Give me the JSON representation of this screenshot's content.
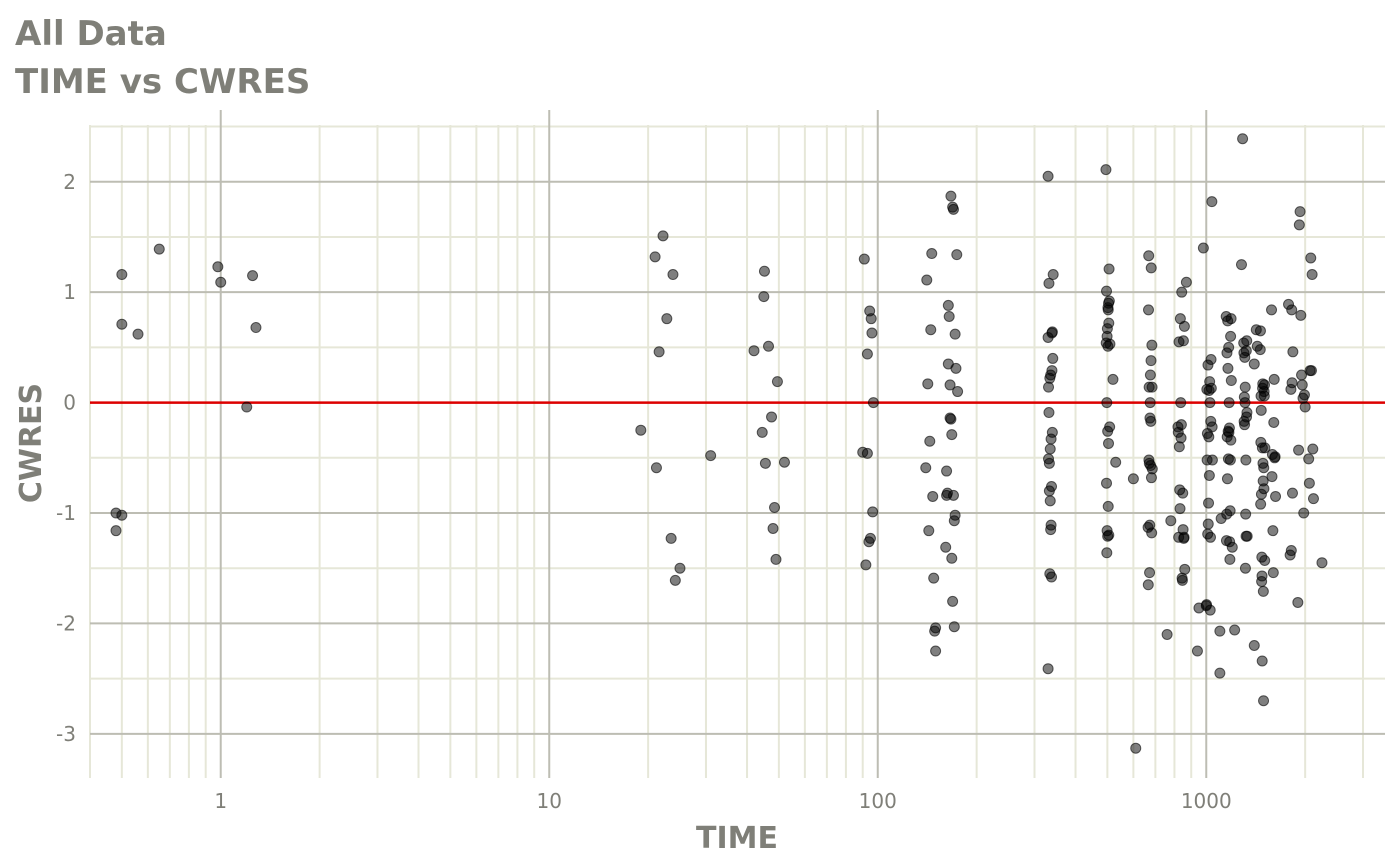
{
  "title_line1": "All Data",
  "title_line2": "TIME vs CWRES",
  "chart_data": {
    "type": "scatter",
    "title": "All Data",
    "subtitle": "TIME vs CWRES",
    "xlabel": "TIME",
    "ylabel": "CWRES",
    "x_scale": "log10",
    "xlim": [
      0.4,
      3500
    ],
    "ylim": [
      -3.4,
      2.65
    ],
    "x_ticks": [
      1,
      10,
      100,
      1000
    ],
    "x_tick_labels": [
      "1",
      "10",
      "100",
      "1000"
    ],
    "y_ticks": [
      -3,
      -2,
      -1,
      0,
      1,
      2
    ],
    "y_tick_labels": [
      "-3",
      "-2",
      "-1",
      "0",
      "1",
      "2"
    ],
    "grid": true,
    "reference_line": {
      "y": 0,
      "color": "#dd0000"
    },
    "colors": {
      "point": "#000000",
      "point_alpha": 0.5,
      "major_grid": "#bdbdb3",
      "minor_grid": "#e6e7d8",
      "text": "#7f7f78"
    },
    "points": [
      [
        0.48,
        -1.0
      ],
      [
        0.48,
        -1.16
      ],
      [
        0.5,
        1.16
      ],
      [
        0.5,
        0.71
      ],
      [
        0.5,
        -1.02
      ],
      [
        0.56,
        0.62
      ],
      [
        0.65,
        1.39
      ],
      [
        0.98,
        1.23
      ],
      [
        1.0,
        1.09
      ],
      [
        1.2,
        -0.04
      ],
      [
        1.25,
        1.15
      ],
      [
        1.28,
        0.68
      ],
      [
        19,
        -0.25
      ],
      [
        21,
        1.32
      ],
      [
        21.2,
        -0.59
      ],
      [
        21.6,
        0.46
      ],
      [
        22.2,
        1.51
      ],
      [
        22.8,
        0.76
      ],
      [
        23.5,
        -1.23
      ],
      [
        23.8,
        1.16
      ],
      [
        24.2,
        -1.61
      ],
      [
        25,
        -1.5
      ],
      [
        31,
        -0.48
      ],
      [
        42,
        0.47
      ],
      [
        44.5,
        -0.27
      ],
      [
        45,
        0.96
      ],
      [
        45.2,
        1.19
      ],
      [
        45.5,
        -0.55
      ],
      [
        46.5,
        0.51
      ],
      [
        47.5,
        -0.13
      ],
      [
        48,
        -1.14
      ],
      [
        48.5,
        -0.95
      ],
      [
        49,
        -1.42
      ],
      [
        49.5,
        0.19
      ],
      [
        52,
        -0.54
      ],
      [
        90,
        -0.45
      ],
      [
        91,
        1.3
      ],
      [
        92,
        -1.47
      ],
      [
        93,
        -0.46
      ],
      [
        93,
        0.44
      ],
      [
        94,
        -1.26
      ],
      [
        94.5,
        0.83
      ],
      [
        95,
        -1.23
      ],
      [
        95.5,
        0.76
      ],
      [
        96,
        0.63
      ],
      [
        96.5,
        -0.99
      ],
      [
        97,
        0.0
      ],
      [
        140,
        -0.59
      ],
      [
        141,
        1.11
      ],
      [
        142,
        0.17
      ],
      [
        143,
        -1.16
      ],
      [
        144,
        -0.35
      ],
      [
        145,
        0.66
      ],
      [
        146,
        1.35
      ],
      [
        147,
        -0.85
      ],
      [
        148,
        -1.59
      ],
      [
        149,
        -2.07
      ],
      [
        150,
        -2.04
      ],
      [
        150,
        -2.25
      ],
      [
        161,
        -1.31
      ],
      [
        162,
        -0.62
      ],
      [
        162,
        -0.84
      ],
      [
        163,
        -0.82
      ],
      [
        164,
        0.88
      ],
      [
        164,
        0.35
      ],
      [
        165,
        0.78
      ],
      [
        166,
        0.16
      ],
      [
        166,
        -0.14
      ],
      [
        167,
        -0.15
      ],
      [
        167,
        1.87
      ],
      [
        168,
        -1.41
      ],
      [
        168,
        -0.29
      ],
      [
        169,
        -1.8
      ],
      [
        169,
        1.77
      ],
      [
        170,
        1.75
      ],
      [
        170,
        -0.84
      ],
      [
        171,
        -2.03
      ],
      [
        171,
        -1.07
      ],
      [
        172,
        -1.02
      ],
      [
        172,
        0.62
      ],
      [
        173,
        0.31
      ],
      [
        174,
        1.34
      ],
      [
        175,
        0.1
      ],
      [
        330,
        2.05
      ],
      [
        330,
        -2.41
      ],
      [
        330,
        0.59
      ],
      [
        331,
        0.14
      ],
      [
        331,
        -0.51
      ],
      [
        332,
        1.08
      ],
      [
        332,
        -0.09
      ],
      [
        333,
        -0.8
      ],
      [
        333,
        -0.55
      ],
      [
        334,
        0.22
      ],
      [
        334,
        -1.55
      ],
      [
        335,
        -0.89
      ],
      [
        335,
        -0.42
      ],
      [
        336,
        0.25
      ],
      [
        336,
        -1.15
      ],
      [
        337,
        -1.11
      ],
      [
        337,
        -0.33
      ],
      [
        338,
        -1.58
      ],
      [
        338,
        -0.76
      ],
      [
        339,
        0.29
      ],
      [
        339,
        0.63
      ],
      [
        340,
        -0.27
      ],
      [
        340,
        0.64
      ],
      [
        341,
        0.4
      ],
      [
        342,
        1.16
      ],
      [
        495,
        2.11
      ],
      [
        496,
        0.54
      ],
      [
        497,
        1.01
      ],
      [
        497,
        -0.73
      ],
      [
        498,
        0.0
      ],
      [
        498,
        -1.36
      ],
      [
        499,
        -1.16
      ],
      [
        499,
        0.6
      ],
      [
        500,
        0.67
      ],
      [
        501,
        -0.26
      ],
      [
        501,
        -1.21
      ],
      [
        502,
        0.51
      ],
      [
        502,
        0.86
      ],
      [
        503,
        -0.94
      ],
      [
        503,
        0.84
      ],
      [
        504,
        -0.37
      ],
      [
        504,
        0.9
      ],
      [
        505,
        -1.2
      ],
      [
        505,
        0.72
      ],
      [
        506,
        1.21
      ],
      [
        507,
        0.92
      ],
      [
        508,
        -0.22
      ],
      [
        509,
        0.53
      ],
      [
        520,
        0.21
      ],
      [
        530,
        -0.54
      ],
      [
        600,
        -0.69
      ],
      [
        610,
        -3.13
      ],
      [
        665,
        -1.13
      ],
      [
        666,
        -1.65
      ],
      [
        667,
        0.84
      ],
      [
        668,
        1.33
      ],
      [
        669,
        -0.52
      ],
      [
        670,
        0.14
      ],
      [
        671,
        -0.55
      ],
      [
        672,
        -1.54
      ],
      [
        673,
        -1.11
      ],
      [
        674,
        -0.14
      ],
      [
        675,
        0.0
      ],
      [
        676,
        0.25
      ],
      [
        677,
        -0.57
      ],
      [
        678,
        -0.17
      ],
      [
        679,
        0.38
      ],
      [
        680,
        1.22
      ],
      [
        681,
        -0.68
      ],
      [
        682,
        -1.18
      ],
      [
        683,
        0.52
      ],
      [
        684,
        0.14
      ],
      [
        685,
        -0.6
      ],
      [
        760,
        -2.1
      ],
      [
        780,
        -1.07
      ],
      [
        820,
        -0.22
      ],
      [
        822,
        -0.27
      ],
      [
        824,
        -1.22
      ],
      [
        826,
        0.55
      ],
      [
        828,
        -0.4
      ],
      [
        830,
        -0.79
      ],
      [
        832,
        -0.96
      ],
      [
        834,
        0.76
      ],
      [
        836,
        0.0
      ],
      [
        838,
        -0.32
      ],
      [
        840,
        -0.2
      ],
      [
        842,
        1.0
      ],
      [
        844,
        -1.59
      ],
      [
        846,
        -1.61
      ],
      [
        848,
        -0.82
      ],
      [
        850,
        -1.15
      ],
      [
        852,
        0.56
      ],
      [
        854,
        -1.23
      ],
      [
        856,
        -1.22
      ],
      [
        858,
        0.69
      ],
      [
        860,
        -1.51
      ],
      [
        870,
        1.09
      ],
      [
        940,
        -2.25
      ],
      [
        950,
        -1.86
      ],
      [
        980,
        1.4
      ],
      [
        1000,
        -1.84
      ],
      [
        1002,
        -1.83
      ],
      [
        1004,
        0.12
      ],
      [
        1006,
        -0.52
      ],
      [
        1008,
        -0.28
      ],
      [
        1010,
        -1.19
      ],
      [
        1012,
        0.34
      ],
      [
        1014,
        -1.1
      ],
      [
        1016,
        -0.91
      ],
      [
        1018,
        -0.31
      ],
      [
        1020,
        0.11
      ],
      [
        1022,
        -0.66
      ],
      [
        1024,
        0.19
      ],
      [
        1026,
        0.0
      ],
      [
        1028,
        -1.88
      ],
      [
        1030,
        -1.22
      ],
      [
        1032,
        -0.17
      ],
      [
        1034,
        0.39
      ],
      [
        1036,
        0.13
      ],
      [
        1040,
        1.82
      ],
      [
        1042,
        -0.22
      ],
      [
        1044,
        -0.52
      ],
      [
        1100,
        -2.45
      ],
      [
        1100,
        -2.07
      ],
      [
        1110,
        -1.05
      ],
      [
        1150,
        0.78
      ],
      [
        1152,
        -1.25
      ],
      [
        1154,
        -1.01
      ],
      [
        1156,
        0.45
      ],
      [
        1158,
        -0.31
      ],
      [
        1160,
        -0.69
      ],
      [
        1162,
        0.74
      ],
      [
        1164,
        0.31
      ],
      [
        1166,
        -0.26
      ],
      [
        1168,
        -0.51
      ],
      [
        1170,
        0.5
      ],
      [
        1172,
        -0.27
      ],
      [
        1174,
        0.0
      ],
      [
        1176,
        -0.23
      ],
      [
        1178,
        -1.26
      ],
      [
        1180,
        -1.42
      ],
      [
        1182,
        -0.98
      ],
      [
        1184,
        -0.52
      ],
      [
        1186,
        0.6
      ],
      [
        1188,
        -0.34
      ],
      [
        1190,
        0.76
      ],
      [
        1192,
        0.2
      ],
      [
        1200,
        -1.31
      ],
      [
        1220,
        -2.06
      ],
      [
        1280,
        1.25
      ],
      [
        1290,
        2.39
      ],
      [
        1300,
        0.54
      ],
      [
        1302,
        0.45
      ],
      [
        1304,
        -0.17
      ],
      [
        1306,
        0.05
      ],
      [
        1308,
        -0.2
      ],
      [
        1310,
        0.41
      ],
      [
        1312,
        0.0
      ],
      [
        1314,
        0.14
      ],
      [
        1316,
        -1.5
      ],
      [
        1318,
        -1.01
      ],
      [
        1320,
        -0.52
      ],
      [
        1322,
        -1.21
      ],
      [
        1324,
        0.47
      ],
      [
        1326,
        -0.13
      ],
      [
        1328,
        0.56
      ],
      [
        1330,
        -0.09
      ],
      [
        1332,
        -1.21
      ],
      [
        1400,
        -2.2
      ],
      [
        1400,
        0.35
      ],
      [
        1420,
        0.66
      ],
      [
        1430,
        0.51
      ],
      [
        1460,
        0.48
      ],
      [
        1462,
        0.65
      ],
      [
        1464,
        -0.92
      ],
      [
        1466,
        -0.36
      ],
      [
        1468,
        0.06
      ],
      [
        1470,
        -0.07
      ],
      [
        1472,
        -0.83
      ],
      [
        1474,
        -1.62
      ],
      [
        1476,
        -1.4
      ],
      [
        1478,
        -1.57
      ],
      [
        1480,
        -2.34
      ],
      [
        1482,
        -0.41
      ],
      [
        1484,
        0.13
      ],
      [
        1486,
        0.17
      ],
      [
        1488,
        -0.55
      ],
      [
        1490,
        -0.71
      ],
      [
        1492,
        -1.71
      ],
      [
        1494,
        -2.7
      ],
      [
        1496,
        -0.59
      ],
      [
        1498,
        -0.78
      ],
      [
        1500,
        0.1
      ],
      [
        1502,
        0.06
      ],
      [
        1504,
        0.16
      ],
      [
        1506,
        -1.43
      ],
      [
        1508,
        -0.41
      ],
      [
        1580,
        0.84
      ],
      [
        1585,
        -0.67
      ],
      [
        1590,
        -0.47
      ],
      [
        1595,
        -1.16
      ],
      [
        1600,
        -1.54
      ],
      [
        1605,
        -0.18
      ],
      [
        1610,
        0.21
      ],
      [
        1615,
        -0.5
      ],
      [
        1620,
        -0.49
      ],
      [
        1625,
        -0.85
      ],
      [
        1780,
        0.89
      ],
      [
        1800,
        -1.38
      ],
      [
        1810,
        0.12
      ],
      [
        1815,
        -1.34
      ],
      [
        1820,
        0.84
      ],
      [
        1825,
        0.18
      ],
      [
        1830,
        -0.82
      ],
      [
        1835,
        0.46
      ],
      [
        1900,
        -1.81
      ],
      [
        1910,
        -0.43
      ],
      [
        1920,
        1.61
      ],
      [
        1930,
        1.73
      ],
      [
        1940,
        0.79
      ],
      [
        1950,
        0.25
      ],
      [
        1960,
        0.16
      ],
      [
        1970,
        0.04
      ],
      [
        1980,
        -1.0
      ],
      [
        1990,
        0.07
      ],
      [
        2000,
        -0.04
      ],
      [
        2050,
        -0.51
      ],
      [
        2060,
        -0.73
      ],
      [
        2070,
        0.29
      ],
      [
        2080,
        1.31
      ],
      [
        2090,
        0.29
      ],
      [
        2100,
        1.16
      ],
      [
        2110,
        -0.42
      ],
      [
        2120,
        -0.87
      ],
      [
        2250,
        -1.45
      ]
    ]
  }
}
